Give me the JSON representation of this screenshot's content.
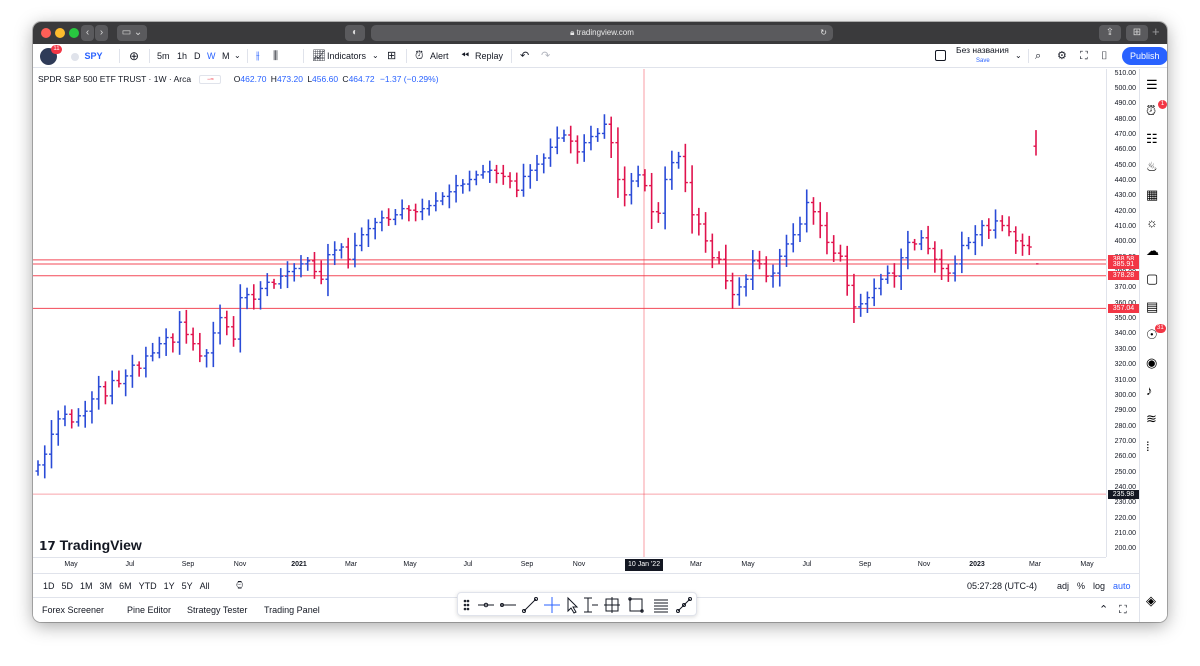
{
  "browser": {
    "url": "tradingview.com"
  },
  "toolbar": {
    "symbol": "SPY",
    "avatar_badge": "11",
    "intervals": [
      "5m",
      "1h",
      "D",
      "W",
      "M"
    ],
    "active_interval": "W",
    "indicators_label": "Indicators",
    "alert_label": "Alert",
    "replay_label": "Replay",
    "layout_name": "Без названия",
    "save_label": "Save",
    "publish_label": "Publish"
  },
  "legend": {
    "title": "SPDR S&P 500 ETF TRUST · 1W · Arca",
    "o_label": "O",
    "o_value": "462.70",
    "h_label": "H",
    "h_value": "473.20",
    "l_label": "L",
    "l_value": "456.60",
    "c_label": "C",
    "c_value": "464.72",
    "change": "−1.37 (−0.29%)"
  },
  "watermark": "TradingView",
  "crosshair": {
    "date_label": "10 Jan '22"
  },
  "colors": {
    "up": "#2a4bd7",
    "down": "#e0134d",
    "hline": "#f23645",
    "accent": "#2962ff"
  },
  "price_axis": {
    "ticks": [
      "510.00",
      "500.00",
      "490.00",
      "480.00",
      "470.00",
      "460.00",
      "450.00",
      "440.00",
      "430.00",
      "420.00",
      "410.00",
      "400.00",
      "390.00",
      "380.00",
      "370.00",
      "360.00",
      "350.00",
      "340.00",
      "330.00",
      "320.00",
      "310.00",
      "300.00",
      "290.00",
      "280.00",
      "270.00",
      "260.00",
      "250.00",
      "240.00",
      "230.00",
      "220.00",
      "210.00",
      "200.00"
    ],
    "badges": [
      "388.58",
      "385.91",
      "378.28",
      "357.04",
      "235.98"
    ]
  },
  "time_axis": {
    "labels": [
      "May",
      "Jul",
      "Sep",
      "Nov",
      "2021",
      "Mar",
      "May",
      "Jul",
      "Sep",
      "Nov",
      "Mar",
      "May",
      "Jul",
      "Sep",
      "Nov",
      "2023",
      "Mar",
      "May"
    ]
  },
  "range_bar": {
    "ranges": [
      "1D",
      "5D",
      "1M",
      "3M",
      "6M",
      "YTD",
      "1Y",
      "5Y",
      "All"
    ],
    "time": "05:27:28 (UTC-4)",
    "adj": "adj",
    "percent": "%",
    "log": "log",
    "auto": "auto"
  },
  "bottom_tabs": [
    "Forex Screener",
    "Pine Editor",
    "Strategy Tester",
    "Trading Panel"
  ],
  "right_badges": {
    "alerts": "1",
    "ideas": "31"
  },
  "chart_data": {
    "type": "ohlc",
    "symbol": "SPY",
    "interval": "1W",
    "ylim": [
      195,
      513
    ],
    "horizontal_lines": [
      388.58,
      385.91,
      378.28,
      357.04,
      235.98
    ],
    "last_bar": {
      "open": 462.7,
      "high": 473.2,
      "low": 456.6,
      "close": 464.72
    },
    "weekly_closes": [
      255,
      262,
      275,
      285,
      288,
      283,
      287,
      290,
      298,
      306,
      300,
      310,
      308,
      313,
      320,
      318,
      326,
      328,
      334,
      338,
      335,
      348,
      340,
      334,
      326,
      328,
      341,
      351,
      345,
      337,
      364,
      366,
      363,
      370,
      374,
      373,
      378,
      381,
      383,
      386,
      388,
      381,
      376,
      392,
      395,
      397,
      389,
      398,
      405,
      409,
      413,
      416,
      415,
      418,
      422,
      421,
      420,
      422,
      424,
      427,
      430,
      433,
      437,
      438,
      441,
      444,
      446,
      447,
      445,
      443,
      440,
      434,
      443,
      447,
      451,
      455,
      462,
      468,
      470,
      466,
      459,
      465,
      469,
      471,
      477,
      465,
      441,
      431,
      440,
      444,
      437,
      420,
      419,
      441,
      452,
      456,
      439,
      418,
      412,
      401,
      390,
      389,
      375,
      366,
      371,
      376,
      388,
      386,
      378,
      380,
      391,
      399,
      405,
      412,
      426,
      420,
      411,
      400,
      393,
      391,
      372,
      358,
      360,
      364,
      370,
      376,
      380,
      378,
      390,
      400,
      399,
      403,
      396,
      389,
      383,
      380,
      386,
      398,
      400,
      405,
      411,
      408,
      414,
      411,
      407,
      401,
      398,
      397,
      386
    ]
  }
}
